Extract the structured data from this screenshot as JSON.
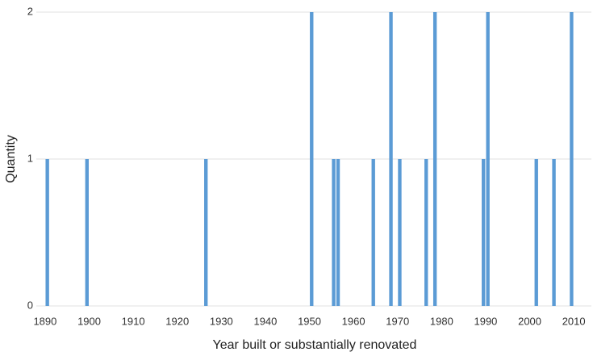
{
  "chart_data": {
    "type": "bar",
    "x_label": "Year built or substantially renovated",
    "y_label": "Quantity",
    "x": [
      1890,
      1899,
      1926,
      1950,
      1955,
      1956,
      1964,
      1968,
      1970,
      1976,
      1978,
      1989,
      1990,
      2001,
      2005,
      2009
    ],
    "values": [
      1,
      1,
      1,
      2,
      1,
      1,
      1,
      2,
      1,
      1,
      2,
      1,
      2,
      1,
      1,
      2
    ],
    "color": "#5b9bd5",
    "xlim": [
      1888,
      2014
    ],
    "xticks": [
      1890,
      1900,
      1910,
      1920,
      1930,
      1940,
      1950,
      1960,
      1970,
      1980,
      1990,
      2000,
      2010
    ],
    "ylim": [
      0,
      2
    ],
    "yticks": [
      0,
      1,
      2
    ],
    "grid": true
  }
}
